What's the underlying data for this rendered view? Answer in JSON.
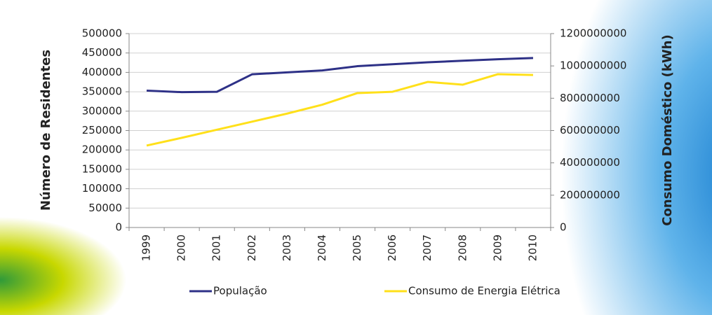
{
  "chart_data": {
    "type": "line",
    "categories": [
      "1999",
      "2000",
      "2001",
      "2002",
      "2003",
      "2004",
      "2005",
      "2006",
      "2007",
      "2008",
      "2009",
      "2010"
    ],
    "y_label": "Número de Residentes",
    "y2_label": "Consumo Doméstico (kWh)",
    "ylim": [
      0,
      500000
    ],
    "yticks": [
      0,
      50000,
      100000,
      150000,
      200000,
      250000,
      300000,
      350000,
      400000,
      450000,
      500000
    ],
    "y2lim": [
      0,
      1200000000
    ],
    "y2ticks": [
      0,
      200000000,
      400000000,
      600000000,
      800000000,
      1000000000,
      1200000000
    ],
    "grid": true,
    "legend": "bottom",
    "series": [
      {
        "name": "População",
        "color": "#2e3187",
        "values": [
          353000,
          349000,
          350000,
          395000,
          400000,
          405000,
          416000,
          421000,
          426000,
          430000,
          434000,
          437000
        ]
      },
      {
        "name": "Consumo de Energia Elétrica",
        "color": "#ffe01a",
        "axis": "y2",
        "values": [
          507000000,
          555000000,
          605000000,
          655000000,
          705000000,
          760000000,
          832000000,
          840000000,
          901000000,
          884000000,
          949000000,
          944000000
        ]
      }
    ]
  }
}
